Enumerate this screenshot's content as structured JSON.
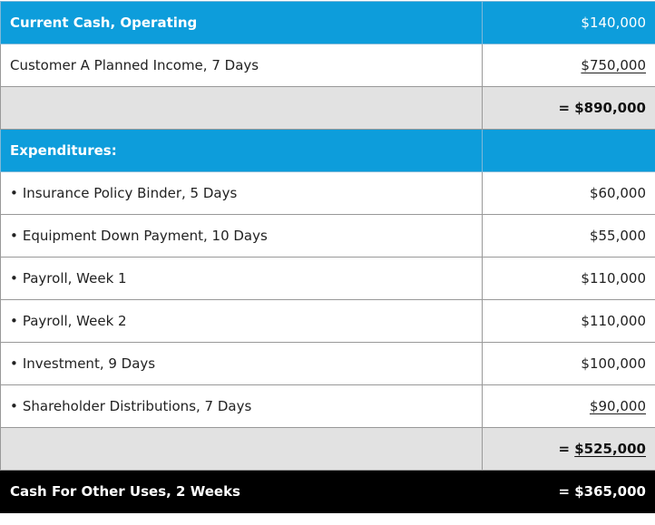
{
  "header": {
    "label": "Current Cash, Operating",
    "value": "$140,000"
  },
  "income": {
    "label": "Customer A Planned Income, 7 Days",
    "value": "$750,000"
  },
  "income_subtotal": {
    "label": "",
    "value": "= $890,000"
  },
  "expenditures_header": {
    "label": "Expenditures:",
    "value": ""
  },
  "expenditures": [
    {
      "bullet": "•",
      "label": "Insurance Policy Binder, 5 Days",
      "value": "$60,000"
    },
    {
      "bullet": "•",
      "label": "Equipment Down Payment, 10 Days",
      "value": "$55,000"
    },
    {
      "bullet": "•",
      "label": "Payroll, Week 1",
      "value": "$110,000"
    },
    {
      "bullet": "•",
      "label": "Payroll, Week 2",
      "value": "$110,000"
    },
    {
      "bullet": "•",
      "label": "Investment, 9 Days",
      "value": "$100,000"
    },
    {
      "bullet": "•",
      "label": "Shareholder Distributions, 7 Days",
      "value": "$90,000"
    }
  ],
  "expenditures_subtotal": {
    "label": "",
    "prefix": "= ",
    "value": "$525,000"
  },
  "total": {
    "label": "Cash For Other Uses, 2 Weeks",
    "value": "= $365,000"
  },
  "colors": {
    "header_blue": "#0d9ddb",
    "subtotal_gray": "#e2e2e2",
    "total_black": "#000000",
    "border_gray": "#999999"
  }
}
